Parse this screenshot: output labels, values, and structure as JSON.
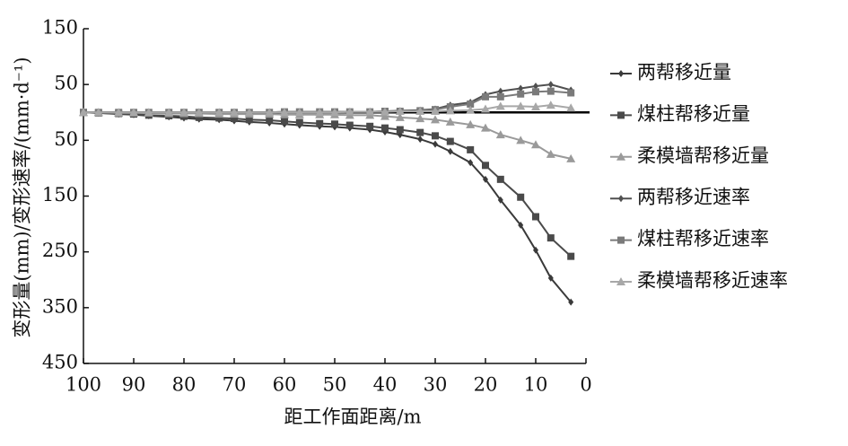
{
  "chart_data": {
    "type": "line",
    "x_label": "距工作面距离/m",
    "y_label": "变形量(mm)/变形速率/(mm·d⁻¹)",
    "x": [
      100,
      97,
      93,
      90,
      87,
      83,
      80,
      77,
      73,
      70,
      67,
      63,
      60,
      57,
      53,
      50,
      47,
      43,
      40,
      37,
      33,
      30,
      27,
      23,
      20,
      17,
      13,
      10,
      7,
      3
    ],
    "xlim": [
      100,
      0
    ],
    "xticks": [
      100,
      90,
      80,
      70,
      60,
      50,
      40,
      30,
      20,
      10,
      0
    ],
    "ylim": [
      -450,
      150
    ],
    "yticks": [
      150,
      {
        "value": 50,
        "label": "50"
      },
      {
        "value": -50,
        "label": "50"
      },
      {
        "value": -150,
        "label": "150"
      },
      {
        "value": -250,
        "label": "250"
      },
      {
        "value": -350,
        "label": "350"
      },
      {
        "value": -450,
        "label": "450"
      }
    ],
    "grid": false,
    "legend": "right",
    "series": [
      {
        "name": "两帮移近量",
        "color": "#3a3a3a",
        "marker": "diamond",
        "values": [
          0,
          -1,
          -3,
          -4,
          -6,
          -8,
          -10,
          -12,
          -13,
          -15,
          -17,
          -19,
          -21,
          -23,
          -25,
          -26,
          -28,
          -31,
          -35,
          -40,
          -48,
          -57,
          -70,
          -90,
          -120,
          -157,
          -202,
          -247,
          -297,
          -340
        ]
      },
      {
        "name": "煤柱帮移近量",
        "color": "#4a4a4a",
        "marker": "square",
        "values": [
          0,
          -1,
          -2,
          -3,
          -5,
          -6,
          -7,
          -9,
          -10,
          -11,
          -13,
          -14,
          -16,
          -18,
          -20,
          -21,
          -23,
          -25,
          -28,
          -31,
          -36,
          -42,
          -52,
          -67,
          -95,
          -120,
          -152,
          -187,
          -225,
          -258
        ]
      },
      {
        "name": "柔模墙帮移近量",
        "color": "#9a9a9a",
        "marker": "triangle",
        "values": [
          0,
          0,
          -1,
          -1,
          -1,
          -2,
          -2,
          -2,
          -3,
          -3,
          -3,
          -3,
          -4,
          -4,
          -4,
          -4,
          -5,
          -5,
          -7,
          -9,
          -11,
          -13,
          -17,
          -22,
          -28,
          -40,
          -50,
          -58,
          -75,
          -83
        ]
      },
      {
        "name": "两帮移近速率",
        "color": "#505050",
        "marker": "diamond",
        "values": [
          0,
          0,
          0,
          0,
          0,
          0,
          0,
          0,
          0,
          0,
          0,
          0,
          1,
          1,
          1,
          1,
          1,
          1,
          2,
          3,
          4,
          6,
          13,
          18,
          32,
          38,
          43,
          47,
          50,
          40
        ]
      },
      {
        "name": "煤柱帮移近速率",
        "color": "#7a7a7a",
        "marker": "square",
        "values": [
          0,
          0,
          0,
          0,
          0,
          0,
          0,
          0,
          0,
          0,
          0,
          0,
          1,
          1,
          1,
          1,
          1,
          1,
          2,
          2,
          3,
          5,
          10,
          15,
          28,
          28,
          33,
          37,
          38,
          35
        ]
      },
      {
        "name": "柔模墙帮移近速率",
        "color": "#a8a8a8",
        "marker": "triangle",
        "values": [
          0,
          0,
          0,
          0,
          0,
          0,
          0,
          0,
          0,
          0,
          0,
          0,
          0,
          0,
          0,
          0,
          1,
          1,
          1,
          2,
          2,
          2,
          3,
          4,
          6,
          11,
          11,
          10,
          13,
          8
        ]
      }
    ]
  }
}
